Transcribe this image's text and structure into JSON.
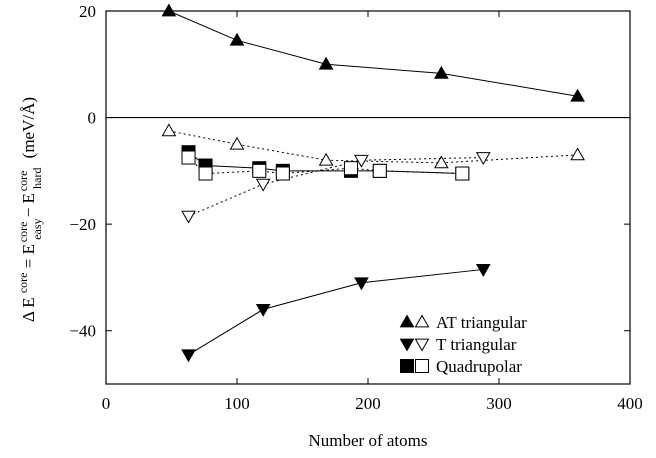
{
  "chart_data": {
    "type": "scatter",
    "title": "",
    "xlabel": "Number of atoms",
    "ylabel": {
      "prefix": "Δ E",
      "sup1": "core",
      "eq": " = E",
      "sub2": "easy",
      "sup2": "core",
      "minus": " − E",
      "sub3": "hard",
      "sup3": "core",
      "unit": "(meV/Å)"
    },
    "xlim": [
      0,
      400
    ],
    "ylim": [
      -50,
      20
    ],
    "xticks": [
      "0",
      "100",
      "200",
      "300",
      "400"
    ],
    "yticks": [
      "20",
      "0",
      "−20",
      "−40"
    ],
    "zero_line": true,
    "legend_position": "bottom-right",
    "series": [
      {
        "name": "AT triangular",
        "label": "AT triangular",
        "marker": "triangle-up",
        "fill": "filled",
        "line": "solid",
        "x": [
          48,
          100,
          168,
          256,
          360
        ],
        "y": [
          20,
          14.5,
          10,
          8.3,
          4
        ]
      },
      {
        "name": "AT triangular (open)",
        "label": "",
        "marker": "triangle-up",
        "fill": "open",
        "line": "dotted",
        "x": [
          48,
          100,
          168,
          256,
          360
        ],
        "y": [
          -2.5,
          -5,
          -8,
          -8.5,
          -7
        ]
      },
      {
        "name": "T triangular",
        "label": "T triangular",
        "marker": "triangle-down",
        "fill": "filled",
        "line": "solid",
        "x": [
          63,
          120,
          195,
          288
        ],
        "y": [
          -44.5,
          -36,
          -31,
          -28.5
        ]
      },
      {
        "name": "T triangular (open)",
        "label": "",
        "marker": "triangle-down",
        "fill": "open",
        "line": "dotted",
        "x": [
          63,
          120,
          195,
          288
        ],
        "y": [
          -18.5,
          -12.5,
          -8,
          -7.5
        ]
      },
      {
        "name": "Quadrupolar",
        "label": "Quadrupolar",
        "marker": "square",
        "fill": "filled",
        "line": "solid",
        "x": [
          63,
          76,
          117,
          135,
          187,
          209,
          272
        ],
        "y": [
          -6.5,
          -9,
          -9.5,
          -10,
          -10,
          -10,
          -10.5
        ]
      },
      {
        "name": "Quadrupolar (open)",
        "label": "",
        "marker": "square",
        "fill": "open",
        "line": "dotted",
        "x": [
          63,
          76,
          117,
          135,
          187,
          209,
          272
        ],
        "y": [
          -7.5,
          -10.5,
          -10,
          -10.5,
          -9.5,
          -10,
          -10.5
        ]
      }
    ]
  }
}
